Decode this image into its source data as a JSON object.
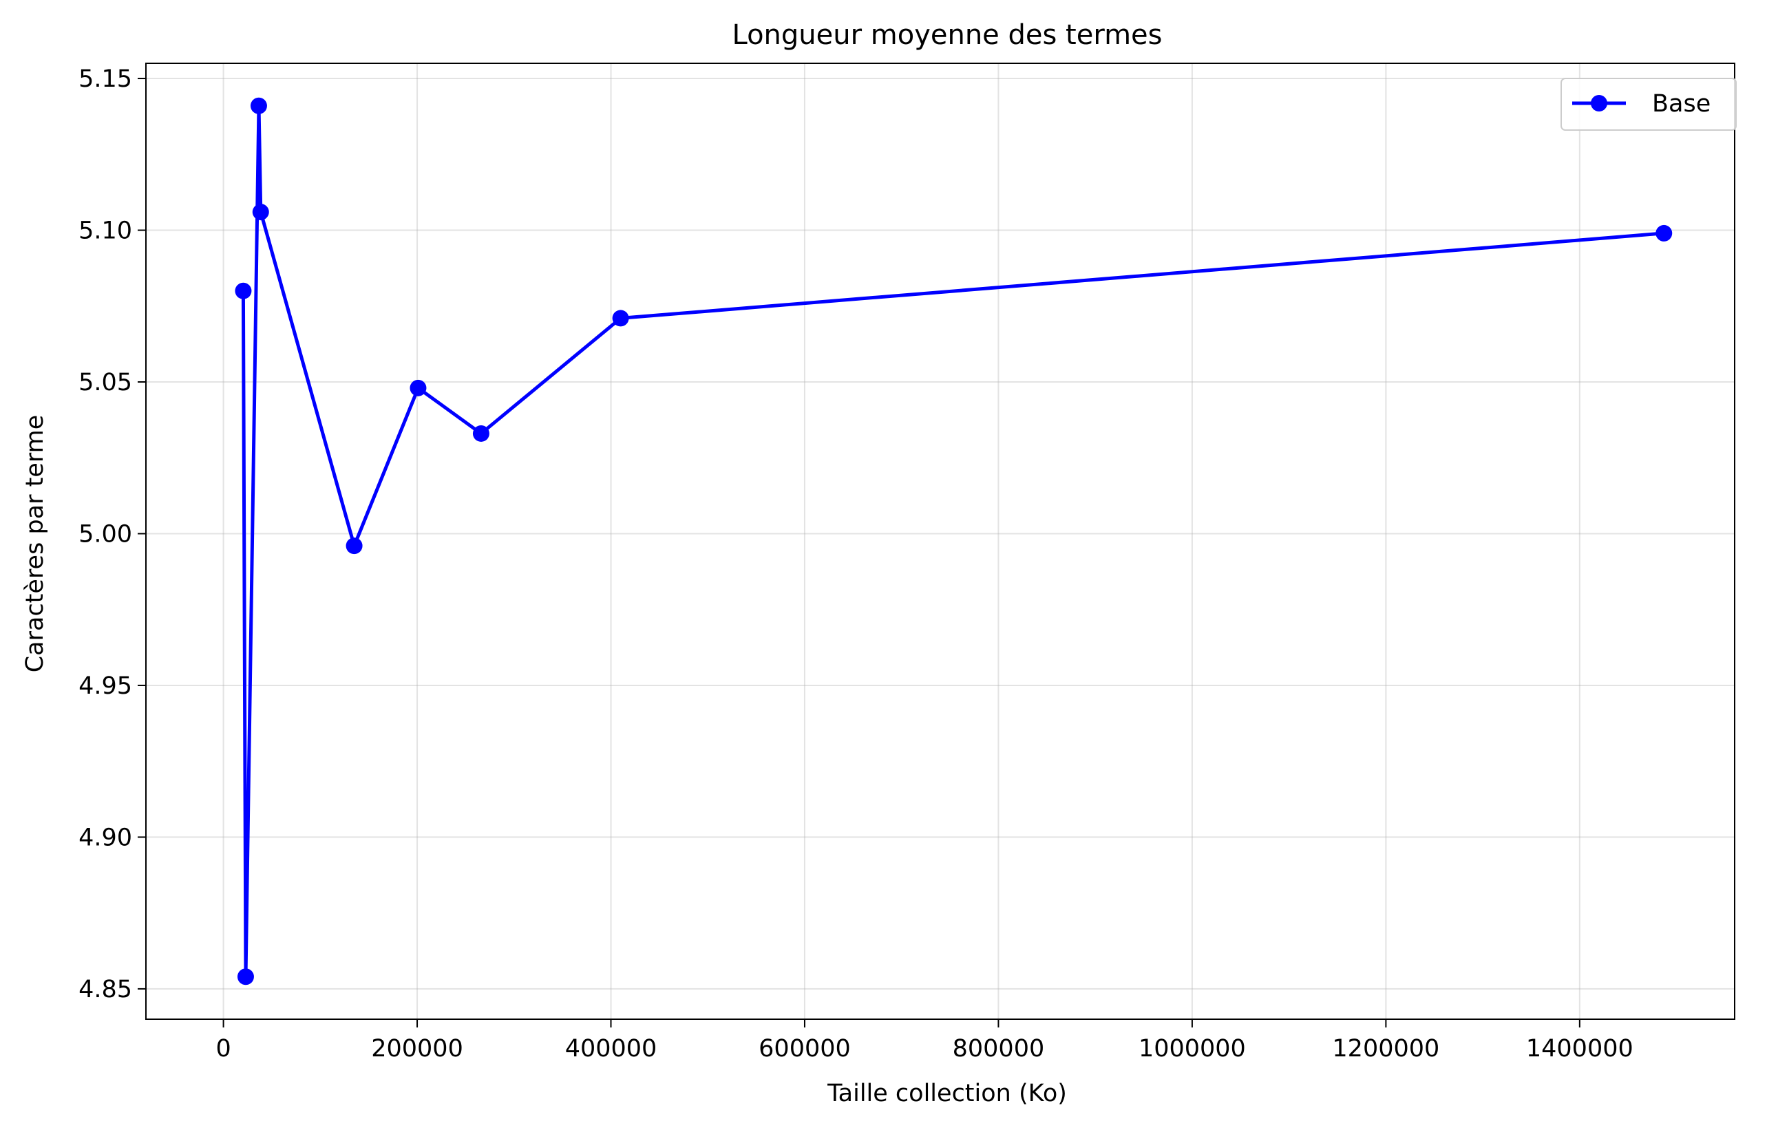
{
  "chart_data": {
    "type": "line",
    "title": "Longueur moyenne des termes",
    "xlabel": "Taille collection (Ko)",
    "ylabel": "Caractères par terme",
    "xlim": [
      -80000,
      1560000
    ],
    "ylim": [
      4.84,
      5.155
    ],
    "x_ticks": [
      0,
      200000,
      400000,
      600000,
      800000,
      1000000,
      1200000,
      1400000
    ],
    "x_tick_labels": [
      "0",
      "200000",
      "400000",
      "600000",
      "800000",
      "1000000",
      "1200000",
      "1400000"
    ],
    "y_ticks": [
      4.85,
      4.9,
      4.95,
      5.0,
      5.05,
      5.1,
      5.15
    ],
    "y_tick_labels": [
      "4.85",
      "4.90",
      "4.95",
      "5.00",
      "5.05",
      "5.10",
      "5.15"
    ],
    "grid": true,
    "legend_position": "top-right",
    "series": [
      {
        "name": "Base",
        "color": "#0000ff",
        "marker": "circle",
        "x": [
          20500,
          23000,
          36500,
          38500,
          135000,
          201000,
          266000,
          410000,
          1487000
        ],
        "y": [
          5.08,
          4.854,
          5.141,
          5.106,
          4.996,
          5.048,
          5.033,
          5.071,
          5.099
        ]
      }
    ]
  }
}
